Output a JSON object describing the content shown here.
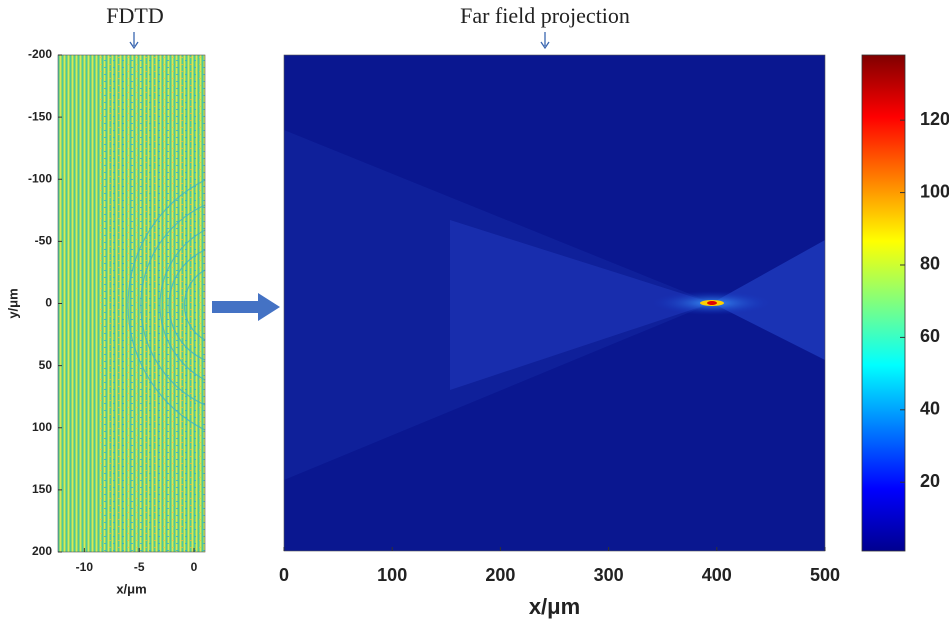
{
  "chart_data": [
    {
      "type": "heatmap",
      "title": "FDTD",
      "x_label": "x/μm",
      "y_label": "y/μm",
      "xlim": [
        -12.4,
        1
      ],
      "xticks": [
        -10,
        -5,
        0
      ],
      "ylim": [
        -200,
        200
      ],
      "yticks": [
        -200,
        -150,
        -100,
        -50,
        0,
        50,
        100,
        150,
        200
      ],
      "y_reversed": true
    },
    {
      "type": "heatmap",
      "title": "Far field projection",
      "x_label": "x/μm",
      "xlim": [
        0,
        500
      ],
      "xticks": [
        0,
        100,
        200,
        300,
        400,
        500
      ],
      "colorbar": {
        "colormap": "jet",
        "clim": [
          1,
          138
        ],
        "ticks": [
          20,
          40,
          60,
          80,
          100,
          120
        ]
      }
    }
  ]
}
